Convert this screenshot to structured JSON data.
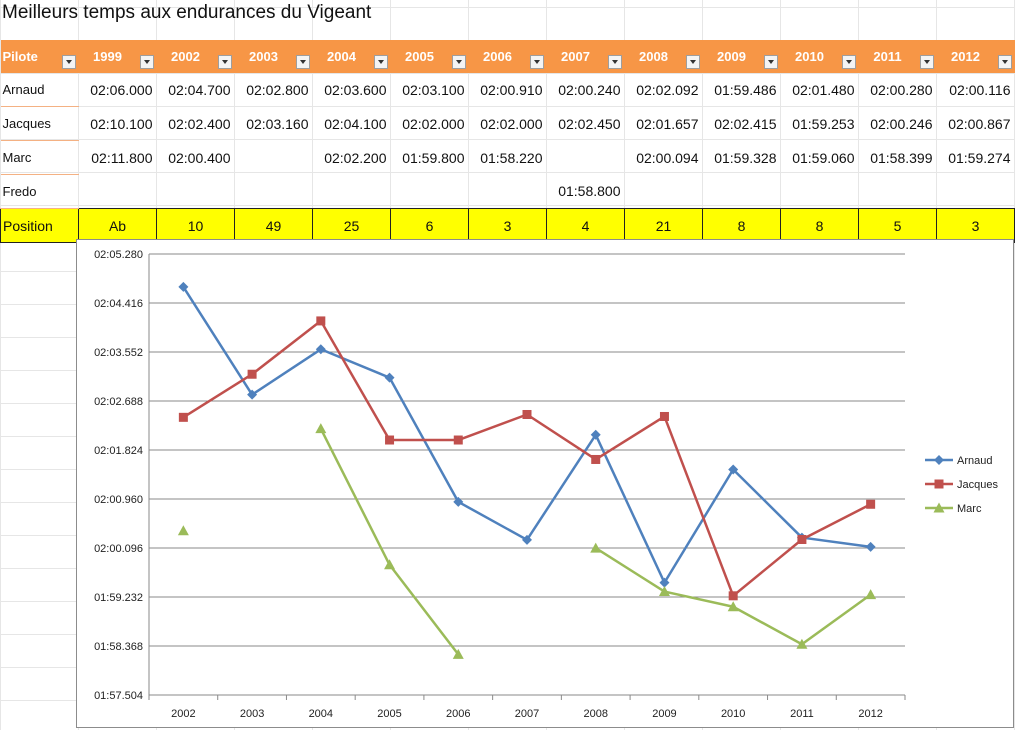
{
  "sheet": {
    "title": "Meilleurs temps aux endurances du Vigeant"
  },
  "table": {
    "header_first": "Pilote",
    "years": [
      "1999",
      "2002",
      "2003",
      "2004",
      "2005",
      "2006",
      "2007",
      "2008",
      "2009",
      "2010",
      "2011",
      "2012"
    ],
    "rows": [
      {
        "name": "Arnaud",
        "values": [
          "02:06.000",
          "02:04.700",
          "02:02.800",
          "02:03.600",
          "02:03.100",
          "02:00.910",
          "02:00.240",
          "02:02.092",
          "01:59.486",
          "02:01.480",
          "02:00.280",
          "02:00.116"
        ]
      },
      {
        "name": "Jacques",
        "values": [
          "02:10.100",
          "02:02.400",
          "02:03.160",
          "02:04.100",
          "02:02.000",
          "02:02.000",
          "02:02.450",
          "02:01.657",
          "02:02.415",
          "01:59.253",
          "02:00.246",
          "02:00.867"
        ]
      },
      {
        "name": "Marc",
        "values": [
          "02:11.800",
          "02:00.400",
          "",
          "02:02.200",
          "01:59.800",
          "01:58.220",
          "",
          "02:00.094",
          "01:59.328",
          "01:59.060",
          "01:58.399",
          "01:59.274"
        ]
      },
      {
        "name": "Fredo",
        "values": [
          "",
          "",
          "",
          "",
          "",
          "",
          "01:58.800",
          "",
          "",
          "",
          "",
          ""
        ]
      }
    ],
    "position": {
      "label": "Position",
      "values": [
        "Ab",
        "10",
        "49",
        "25",
        "6",
        "3",
        "4",
        "21",
        "8",
        "8",
        "5",
        "3"
      ]
    }
  },
  "colors": {
    "header_bg": "#f79646",
    "position_bg": "#ffff00",
    "arnaud": "#4f81bd",
    "jacques": "#c0504d",
    "marc": "#9bbb59"
  },
  "chart_data": {
    "type": "line",
    "title": "",
    "xlabel": "",
    "ylabel": "",
    "categories": [
      "2002",
      "2003",
      "2004",
      "2005",
      "2006",
      "2007",
      "2008",
      "2009",
      "2010",
      "2011",
      "2012"
    ],
    "y_ticks": [
      "02:05.280",
      "02:04.416",
      "02:03.552",
      "02:02.688",
      "02:01.824",
      "02:00.960",
      "02:00.096",
      "01:59.232",
      "01:58.368",
      "01:57.504"
    ],
    "ylim_seconds": [
      117.504,
      125.28
    ],
    "grid": true,
    "legend": "right",
    "series": [
      {
        "name": "Arnaud",
        "marker": "diamond",
        "color": "#4f81bd",
        "values": [
          124.7,
          122.8,
          123.6,
          123.1,
          120.91,
          120.24,
          122.092,
          119.486,
          121.48,
          120.28,
          120.116
        ]
      },
      {
        "name": "Jacques",
        "marker": "square",
        "color": "#c0504d",
        "values": [
          122.4,
          123.16,
          124.1,
          122.0,
          122.0,
          122.45,
          121.657,
          122.415,
          119.253,
          120.246,
          120.867
        ]
      },
      {
        "name": "Marc",
        "marker": "triangle",
        "color": "#9bbb59",
        "values": [
          120.4,
          null,
          122.2,
          119.8,
          118.22,
          null,
          120.094,
          119.328,
          119.06,
          118.399,
          119.274
        ]
      }
    ]
  }
}
